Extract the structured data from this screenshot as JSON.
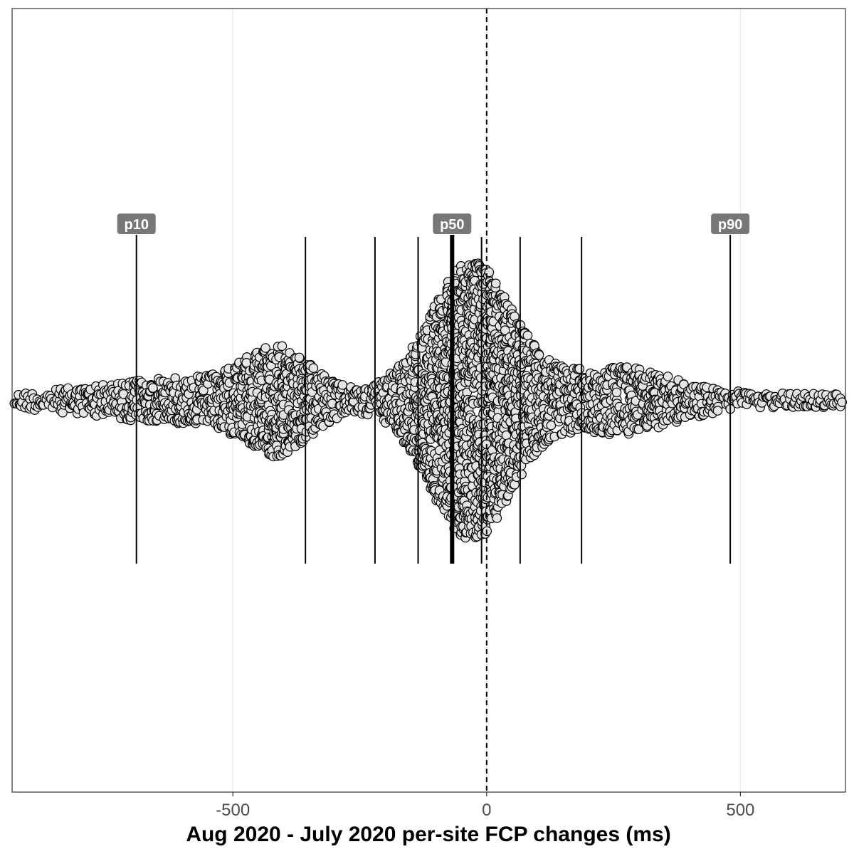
{
  "chart_data": {
    "type": "scatter",
    "subtype": "beeswarm",
    "xlabel": "Aug 2020 - July 2020 per-site FCP changes (ms)",
    "xlim": [
      -935,
      707
    ],
    "x_ticks": [
      -500,
      0,
      500
    ],
    "x_tick_labels": [
      "-500",
      "0",
      "500"
    ],
    "grid": "vertical major only",
    "reference_line": {
      "x": 0,
      "style": "dashed"
    },
    "percentile_lines": [
      {
        "p": 10,
        "label": "p10",
        "x": -690
      },
      {
        "p": 20,
        "label": "",
        "x": -357
      },
      {
        "p": 30,
        "label": "",
        "x": -220
      },
      {
        "p": 40,
        "label": "",
        "x": -135
      },
      {
        "p": 50,
        "label": "p50",
        "x": -68
      },
      {
        "p": 60,
        "label": "",
        "x": -10
      },
      {
        "p": 70,
        "label": "",
        "x": 66
      },
      {
        "p": 80,
        "label": "",
        "x": 187
      },
      {
        "p": 90,
        "label": "p90",
        "x": 480
      }
    ],
    "points": {
      "fill": "#e5e5e5",
      "stroke": "#000000",
      "shape": "circle"
    }
  }
}
